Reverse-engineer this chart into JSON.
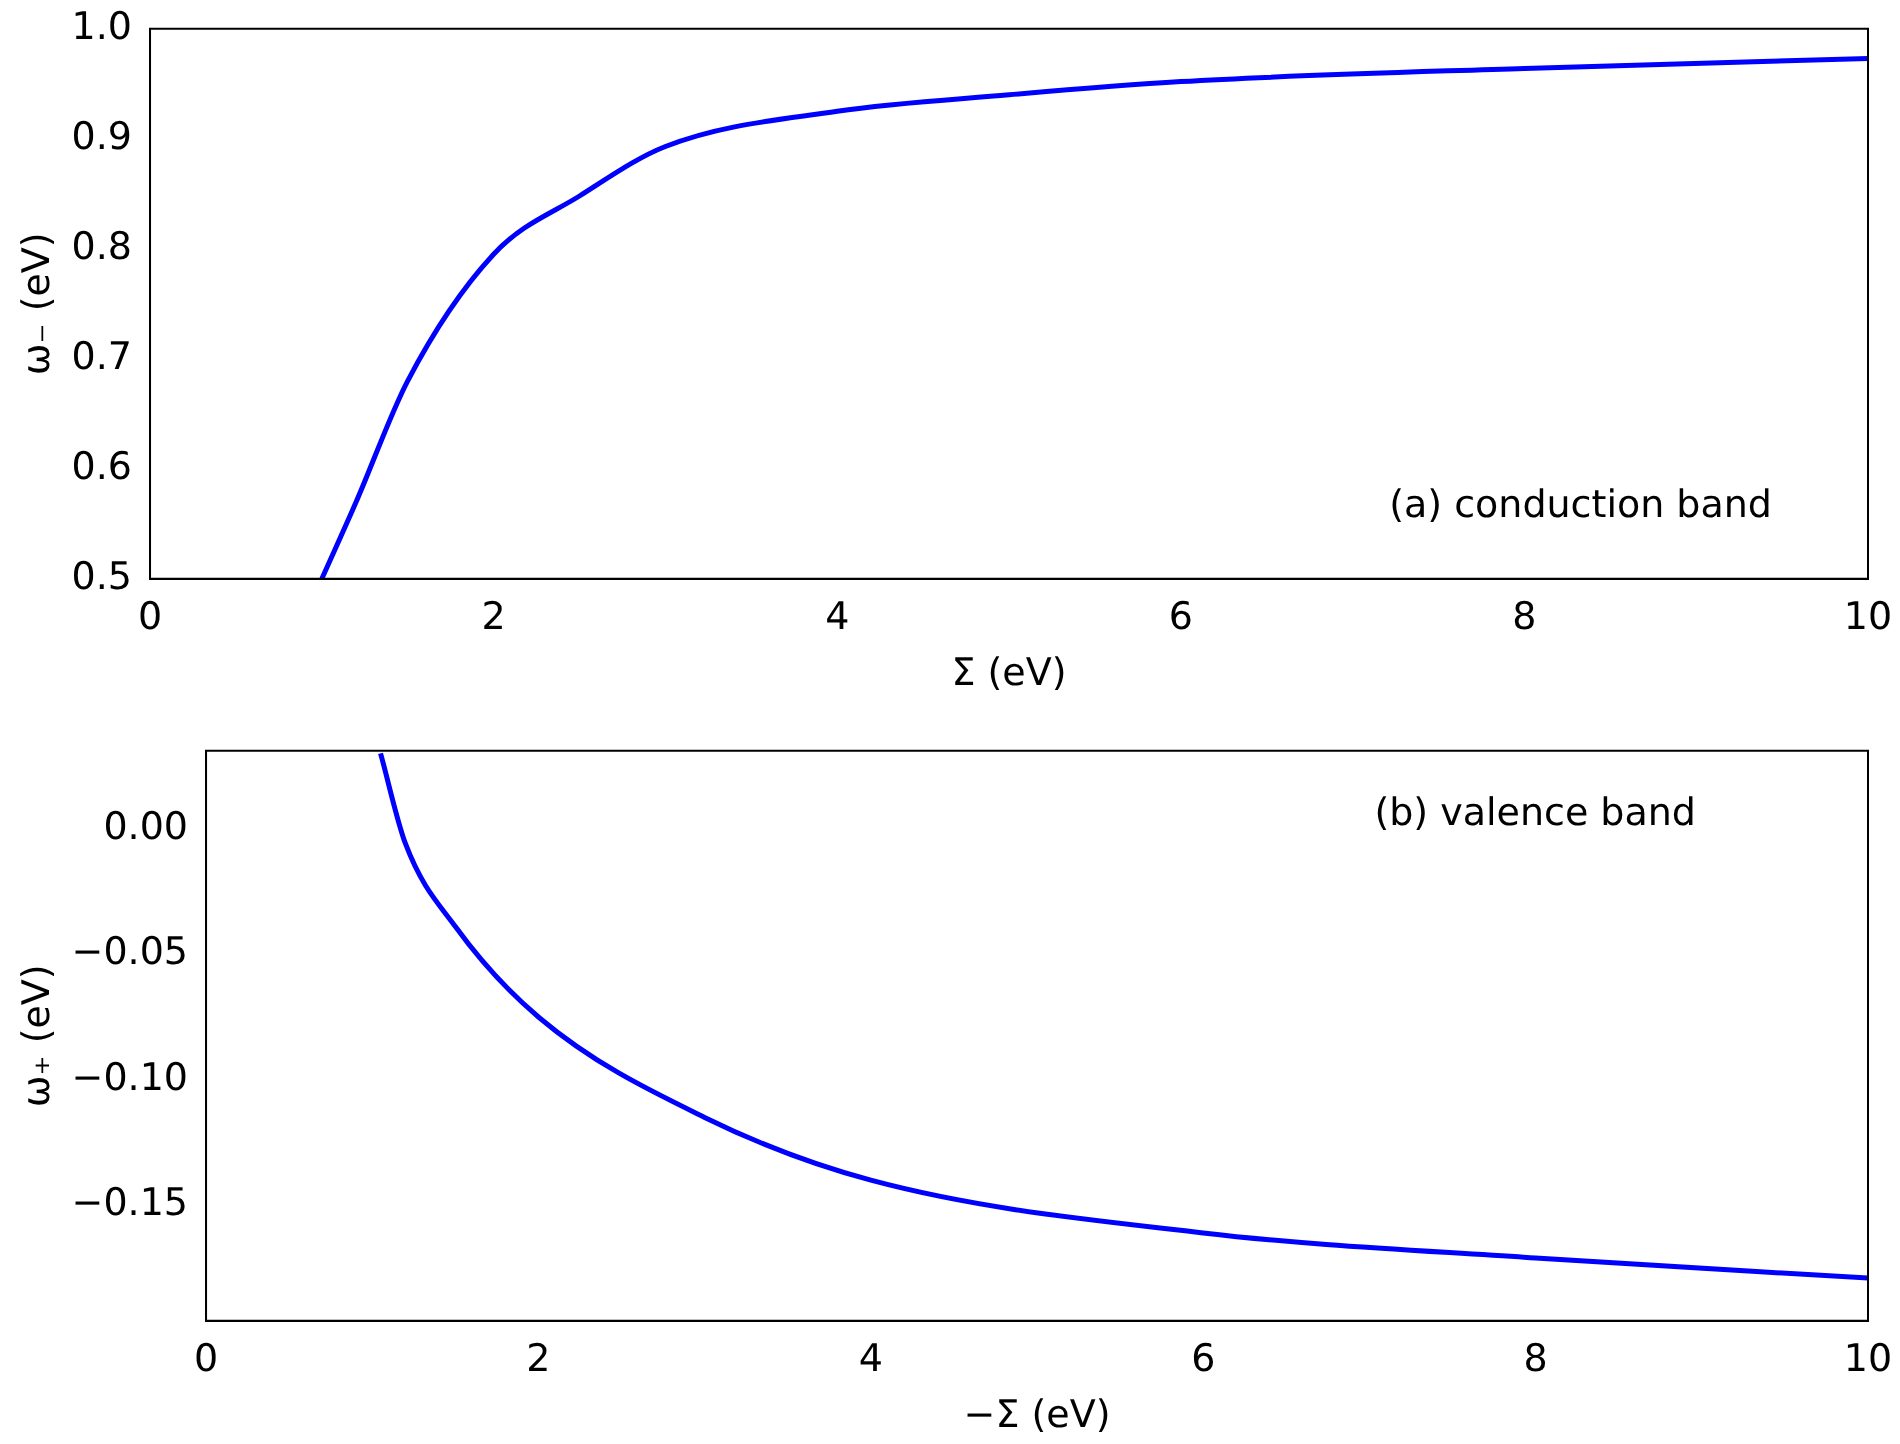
{
  "chart_data": [
    {
      "type": "line",
      "xlabel": "Σ (eV)",
      "ylabel": "ω₋ (eV)",
      "annotations": [
        "(a) conduction band"
      ],
      "grid": false,
      "legend": false,
      "marker": "none",
      "line_style": "solid",
      "xlim": [
        0,
        10
      ],
      "xticks": [
        0,
        2,
        4,
        6,
        8,
        10
      ],
      "ylim": [
        0.5,
        1.0
      ],
      "yticks": [
        {
          "value": 0.5,
          "label": "0.5"
        },
        0.6,
        0.7,
        0.8,
        0.9,
        {
          "value": 1.0,
          "label": "1.0"
        }
      ],
      "series": [
        {
          "color": "#0000ff",
          "x": [
            1.0,
            1.2,
            1.5,
            2,
            2.5,
            3,
            4,
            5,
            6,
            8,
            10
          ],
          "values": [
            0.5,
            0.57,
            0.68,
            0.795,
            0.848,
            0.893,
            0.925,
            0.94,
            0.952,
            0.964,
            0.973
          ]
        }
      ]
    },
    {
      "type": "line",
      "xlabel": "−Σ (eV)",
      "ylabel": "ω₊ (eV)",
      "annotations": [
        "(b) valence band"
      ],
      "grid": false,
      "legend": false,
      "marker": "none",
      "line_style": "solid",
      "xlim": [
        0,
        10
      ],
      "xticks": [
        0,
        2,
        4,
        6,
        8,
        10
      ],
      "ylim": [
        -0.196,
        0.031
      ],
      "yticks": [
        {
          "value": 0,
          "label": "0.00"
        },
        {
          "value": -0.05,
          "label": "−0.05"
        },
        {
          "value": -0.1,
          "label": "−0.10"
        },
        {
          "value": -0.15,
          "label": "−0.15"
        }
      ],
      "series": [
        {
          "color": "#0000ff",
          "x": [
            1.05,
            1.2,
            1.5,
            2,
            3,
            4,
            6,
            8,
            10
          ],
          "values": [
            0.03,
            -0.006,
            -0.039,
            -0.075,
            -0.115,
            -0.14,
            -0.161,
            -0.171,
            -0.179
          ]
        }
      ]
    }
  ]
}
